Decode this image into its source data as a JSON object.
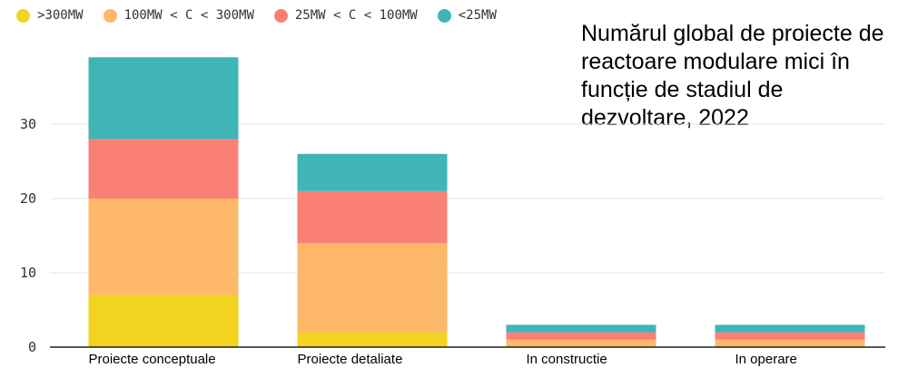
{
  "chart_data": {
    "type": "bar",
    "stacked": true,
    "title": "Numărul global de proiecte de reactoare modulare mici în funcție de stadiul de dezvoltare, 2022",
    "categories": [
      "Proiecte conceptuale",
      "Proiecte detaliate",
      "In constructie",
      "In operare"
    ],
    "series": [
      {
        "name": ">300MW",
        "color": "#f2d31f",
        "values": [
          7,
          2,
          0,
          0
        ]
      },
      {
        "name": "100MW < C < 300MW",
        "color": "#fdb869",
        "values": [
          13,
          12,
          1,
          1
        ]
      },
      {
        "name": "25MW < C < 100MW",
        "color": "#fa8076",
        "values": [
          8,
          7,
          1,
          1
        ]
      },
      {
        "name": "<25MW",
        "color": "#3fb5b7",
        "values": [
          11,
          5,
          1,
          1
        ]
      }
    ],
    "ylim": [
      0,
      40
    ],
    "yticks": [
      0,
      10,
      20,
      30
    ],
    "grid": true,
    "legend_position": "top-left"
  }
}
